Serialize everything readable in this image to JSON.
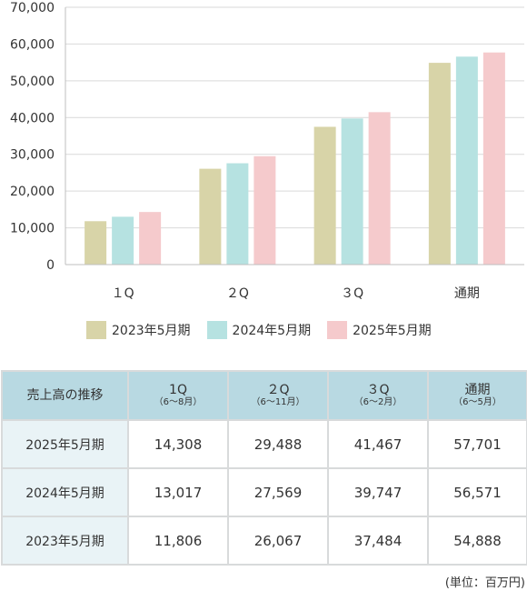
{
  "chart_data": {
    "type": "bar",
    "categories": [
      "1Q",
      "2Q",
      "3Q",
      "通期"
    ],
    "category_labels": [
      "１Q",
      "２Q",
      "３Q",
      "通期"
    ],
    "y_tick_labels": [
      "0",
      "10,000",
      "20,000",
      "30,000",
      "40,000",
      "50,000",
      "60,000",
      "70,000"
    ],
    "ylim": [
      0,
      70000
    ],
    "grid": true,
    "legend_position": "bottom",
    "series": [
      {
        "name": "2023年5月期",
        "color": "#d8d4a8",
        "values": [
          11806,
          26067,
          37484,
          54888
        ]
      },
      {
        "name": "2024年5月期",
        "color": "#b6e2e1",
        "values": [
          13017,
          27569,
          39747,
          56571
        ]
      },
      {
        "name": "2025年5月期",
        "color": "#f5cacc",
        "values": [
          14308,
          29488,
          41467,
          57701
        ]
      }
    ]
  },
  "table": {
    "corner": "売上高の推移",
    "columns": [
      {
        "label": "1Q",
        "sub": "（6～8月）"
      },
      {
        "label": "２Q",
        "sub": "（6～11月）"
      },
      {
        "label": "３Q",
        "sub": "（6～2月）"
      },
      {
        "label": "通期",
        "sub": "（6～5月）"
      }
    ],
    "rows": [
      {
        "label": "2025年5月期",
        "values": [
          "14,308",
          "29,488",
          "41,467",
          "57,701"
        ]
      },
      {
        "label": "2024年5月期",
        "values": [
          "13,017",
          "27,569",
          "39,747",
          "56,571"
        ]
      },
      {
        "label": "2023年5月期",
        "values": [
          "11,806",
          "26,067",
          "37,484",
          "54,888"
        ]
      }
    ]
  },
  "unit_note": "(単位：百万円)"
}
